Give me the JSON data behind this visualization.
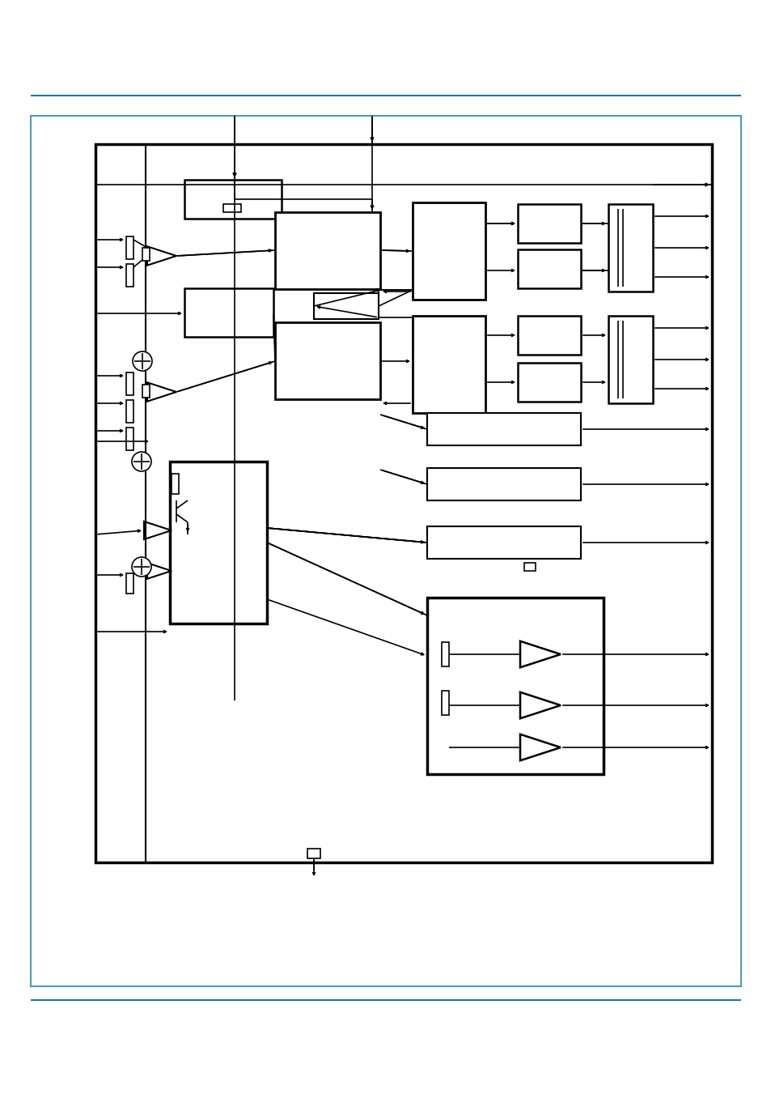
{
  "bg": "#ffffff",
  "teal": "#1a7a9a",
  "border": "#4a9db5",
  "black": "#000000",
  "figsize": [
    9.54,
    13.51
  ],
  "dpi": 100
}
